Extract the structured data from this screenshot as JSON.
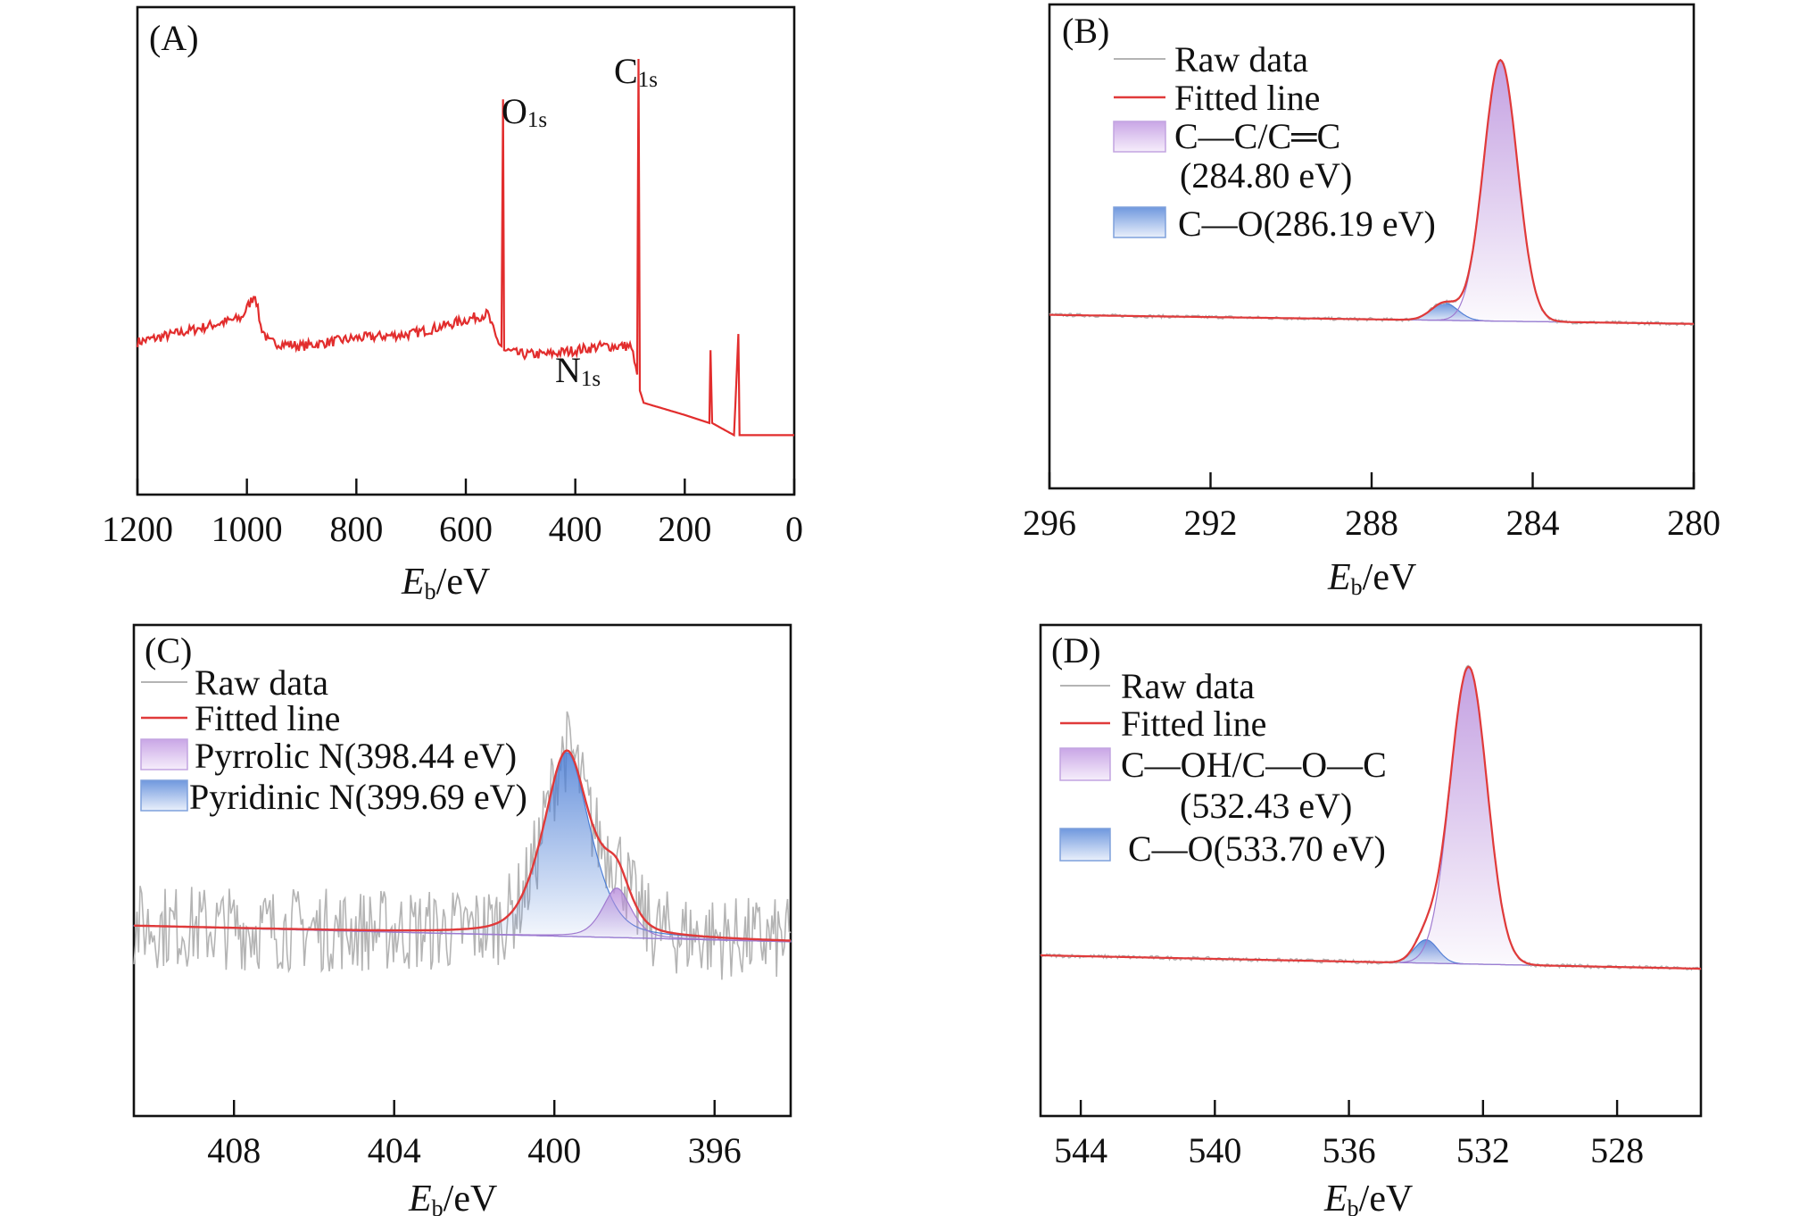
{
  "colors": {
    "raw": "#b4b4b4",
    "fitted": "#e03a3a",
    "purple": "#b98fdc",
    "blue": "#4d7fd6",
    "survey": "#e22d2d",
    "frame": "#111111"
  },
  "chart_data": [
    {
      "panel": "(A)",
      "type": "line",
      "xlabel_main": "E",
      "xlabel_sub": "b",
      "xlabel_unit": "/eV",
      "xlim": [
        1200,
        0
      ],
      "xticks": [
        1200,
        1000,
        800,
        600,
        400,
        200,
        0
      ],
      "yticks_shown": false,
      "series": [
        {
          "points": [
            [
              1200,
              0.16
            ],
            [
              1100,
              0.19
            ],
            [
              1010,
              0.22
            ],
            [
              985,
              0.28
            ],
            [
              975,
              0.2
            ],
            [
              960,
              0.16
            ],
            [
              900,
              0.15
            ],
            [
              800,
              0.17
            ],
            [
              700,
              0.18
            ],
            [
              640,
              0.2
            ],
            [
              560,
              0.23
            ],
            [
              545,
              0.17
            ],
            [
              535,
              0.15
            ],
            [
              532,
              0.76
            ],
            [
              530,
              0.14
            ],
            [
              500,
              0.13
            ],
            [
              450,
              0.13
            ],
            [
              400,
              0.14
            ],
            [
              350,
              0.15
            ],
            [
              300,
              0.15
            ],
            [
              292,
              0.12
            ],
            [
              287,
              0.08
            ],
            [
              284.5,
              0.86
            ],
            [
              282,
              0.04
            ],
            [
              275,
              0.01
            ],
            [
              250,
              0.0
            ],
            [
              200,
              -0.02
            ],
            [
              155,
              -0.04
            ],
            [
              153,
              0.14
            ],
            [
              150,
              -0.04
            ],
            [
              110,
              -0.07
            ],
            [
              102,
              0.18
            ],
            [
              100,
              -0.07
            ],
            [
              50,
              -0.07
            ],
            [
              0,
              -0.07
            ]
          ]
        }
      ],
      "peaks": [
        {
          "element": "O",
          "sub": "1s"
        },
        {
          "element": "C",
          "sub": "1s"
        },
        {
          "element": "N",
          "sub": "1s"
        }
      ]
    },
    {
      "panel": "(B)",
      "type": "line",
      "xlabel_main": "E",
      "xlabel_sub": "b",
      "xlabel_unit": "/eV",
      "xlim": [
        296,
        280
      ],
      "xticks": [
        296,
        292,
        288,
        284,
        280
      ],
      "yticks_shown": false,
      "legend": [
        "Raw data",
        "Fitted line",
        "C—C/C═C",
        "(284.80 eV)",
        "C—O(286.19 eV)"
      ],
      "baseline": [
        [
          296,
          0.03
        ],
        [
          280,
          0.0
        ]
      ],
      "components": [
        {
          "name": "C—C/C═C (284.80 eV)",
          "center": 284.8,
          "height": 0.87,
          "width": 0.42,
          "color": "purple"
        },
        {
          "name": "C—O(286.19 eV)",
          "center": 286.19,
          "height": 0.058,
          "width": 0.33,
          "color": "blue"
        }
      ]
    },
    {
      "panel": "(C)",
      "type": "line",
      "xlabel_main": "E",
      "xlabel_sub": "b",
      "xlabel_unit": "/eV",
      "xlim": [
        410.5,
        394.1
      ],
      "xticks": [
        408,
        404,
        400,
        396
      ],
      "yticks_shown": false,
      "legend": [
        "Raw data",
        "Fitted line",
        "Pyrrolic N(398.44 eV)",
        "Pyridinic N(399.69 eV)"
      ],
      "baseline": [
        [
          410.5,
          0.26
        ],
        [
          394.1,
          0.215
        ]
      ],
      "components": [
        {
          "name": "Pyridinic N(399.69 eV)",
          "center": 399.69,
          "height": 0.52,
          "width": 0.62,
          "color": "blue"
        },
        {
          "name": "Pyrrolic N(398.44 eV)",
          "center": 398.44,
          "height": 0.14,
          "width": 0.38,
          "color": "purple"
        }
      ]
    },
    {
      "panel": "(D)",
      "type": "line",
      "xlabel_main": "E",
      "xlabel_sub": "b",
      "xlabel_unit": "/eV",
      "xlim": [
        545.2,
        525.5
      ],
      "xticks": [
        544,
        540,
        536,
        532,
        528
      ],
      "yticks_shown": false,
      "legend": [
        "Raw data",
        "Fitted line",
        "C—OH/C—O—C",
        "(532.43 eV)",
        "C—O(533.70 eV)"
      ],
      "baseline": [
        [
          545.2,
          0.04
        ],
        [
          525.5,
          0.0
        ]
      ],
      "components": [
        {
          "name": "C—OH/C—O—C (532.43 eV)",
          "center": 532.43,
          "height": 0.89,
          "width": 0.55,
          "color": "purple"
        },
        {
          "name": "C—O(533.70 eV)",
          "center": 533.7,
          "height": 0.07,
          "width": 0.35,
          "color": "blue"
        }
      ]
    }
  ]
}
